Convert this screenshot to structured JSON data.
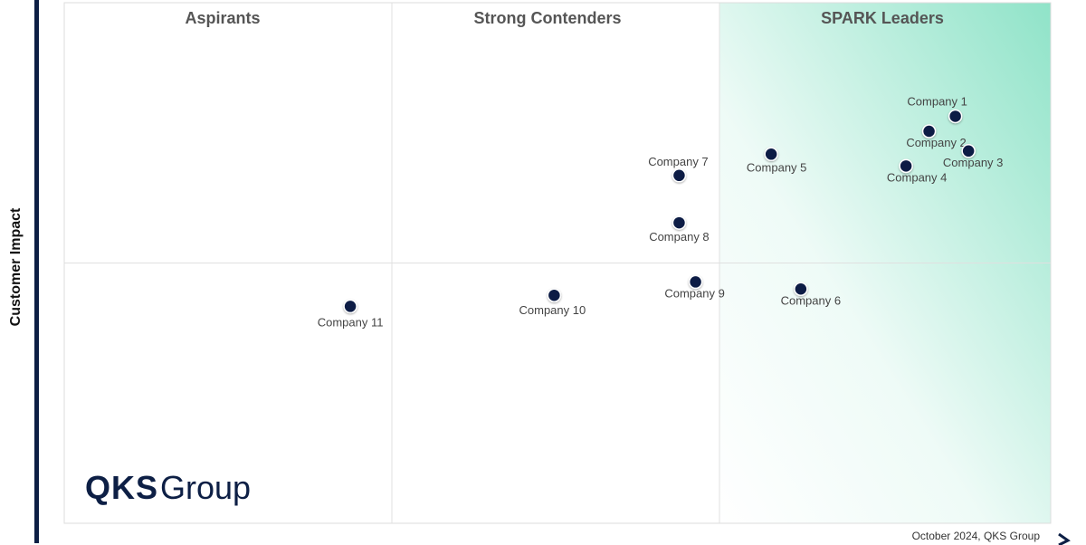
{
  "chart_data": {
    "type": "scatter",
    "title": "",
    "ylabel": "Customer Impact",
    "xlabel": "",
    "quadrants": [
      "Aspirants",
      "Strong Contenders",
      "SPARK Leaders"
    ],
    "series": [
      {
        "points": [
          {
            "label": "Company 1",
            "x": 2.71,
            "y": 1.86
          },
          {
            "label": "Company 2",
            "x": 2.63,
            "y": 1.67
          },
          {
            "label": "Company 3",
            "x": 2.75,
            "y": 1.42
          },
          {
            "label": "Company 4",
            "x": 2.56,
            "y": 1.23
          },
          {
            "label": "Company 5",
            "x": 2.15,
            "y": 1.38
          },
          {
            "label": "Company 6",
            "x": 2.24,
            "y": -0.33
          },
          {
            "label": "Company 7",
            "x": 1.87,
            "y": 1.11
          },
          {
            "label": "Company 8",
            "x": 1.87,
            "y": 0.51
          },
          {
            "label": "Company 9",
            "x": 1.92,
            "y": -0.24
          },
          {
            "label": "Company 10",
            "x": 1.49,
            "y": -0.41
          },
          {
            "label": "Company 11",
            "x": 0.87,
            "y": -0.55
          }
        ]
      }
    ],
    "xlim": [
      0,
      3
    ],
    "ylim": [
      -3.3,
      3.3
    ],
    "grid": true,
    "legend": "none"
  },
  "branding": {
    "logo_strong": "QKS",
    "logo_light": "Group"
  },
  "footnote": "October 2024, QKS Group",
  "colors": {
    "point": "#0d1f45",
    "leader_gradient": "#8fe3c8",
    "axis_bar": "#0d1f45"
  }
}
